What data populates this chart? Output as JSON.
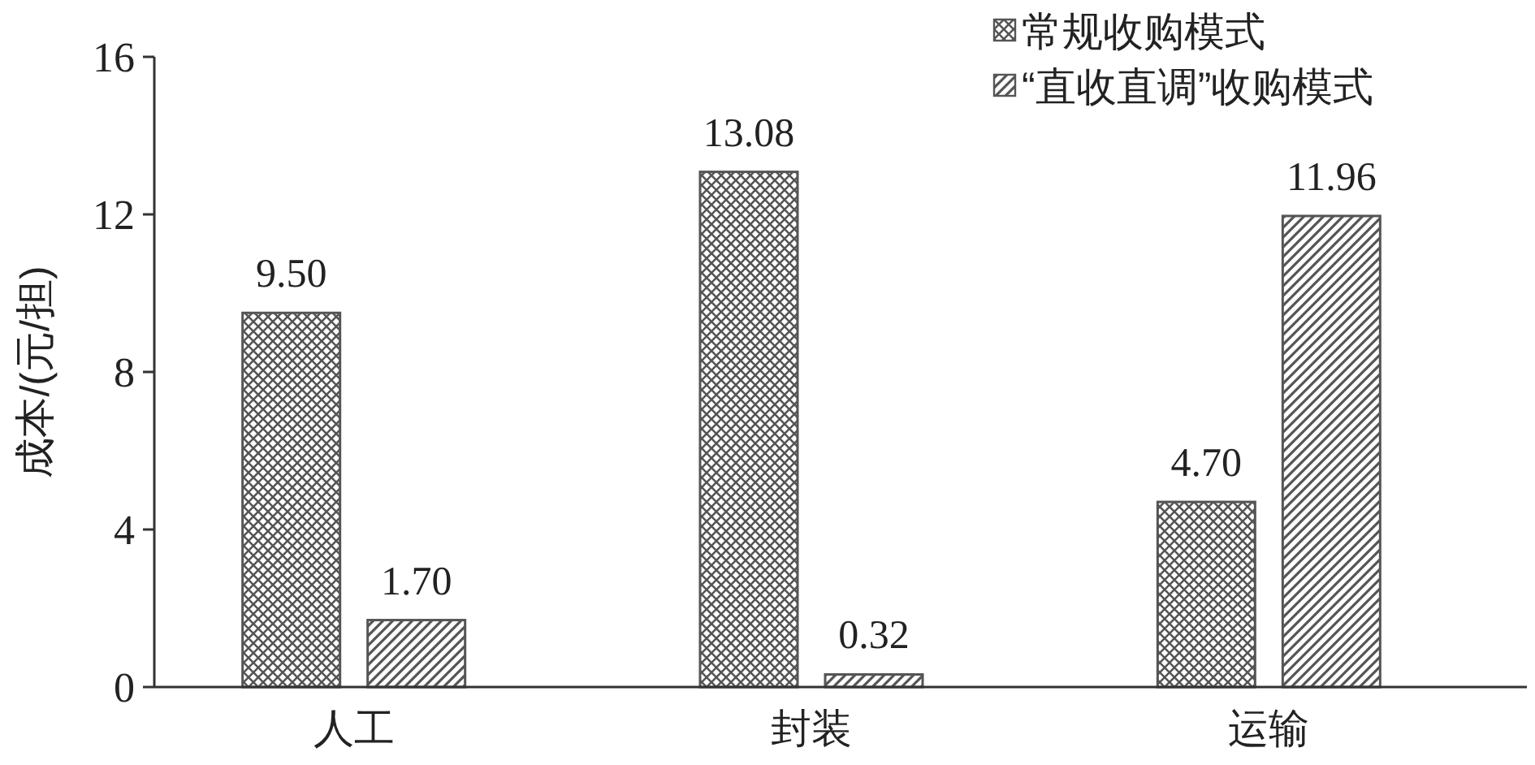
{
  "chart_data": {
    "type": "bar",
    "ylabel": "成本/(元/担)",
    "categories": [
      "人工",
      "封装",
      "运输"
    ],
    "series": [
      {
        "name": "常规收购模式",
        "color": "#555555",
        "values": [
          9.5,
          13.08,
          4.7
        ],
        "value_labels": [
          "9.50",
          "13.08",
          "4.70"
        ]
      },
      {
        "name": "“直收直调”收购模式",
        "color": "#555555",
        "values": [
          1.7,
          0.32,
          11.96
        ],
        "value_labels": [
          "1.70",
          "0.32",
          "11.96"
        ]
      }
    ],
    "ylim": [
      0,
      16
    ],
    "yticks": [
      0,
      4,
      8,
      12,
      16
    ],
    "legend": "top right",
    "grid": false
  }
}
